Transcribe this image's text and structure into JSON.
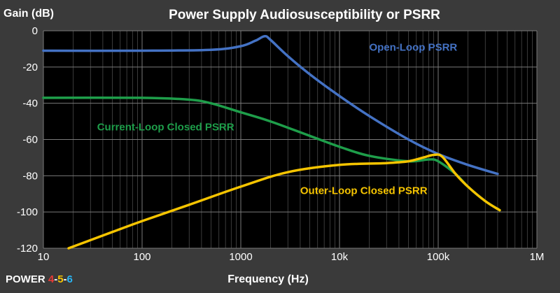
{
  "chart_data": {
    "type": "line",
    "title": "Power Supply Audiosusceptibility or PSRR",
    "ylabel": "Gain (dB)",
    "xlabel": "Frequency (Hz)",
    "x_scale": "log",
    "xlim": [
      10,
      1000000
    ],
    "ylim": [
      -120,
      0
    ],
    "x_ticks": [
      10,
      100,
      1000,
      10000,
      100000,
      1000000
    ],
    "x_tick_labels": [
      "10",
      "100",
      "1000",
      "10k",
      "100k",
      "1M"
    ],
    "y_ticks": [
      0,
      -20,
      -40,
      -60,
      -80,
      -100,
      -120
    ],
    "y_tick_labels": [
      "0",
      "-20",
      "-40",
      "-60",
      "-80",
      "-100",
      "-120"
    ],
    "grid": true,
    "series": [
      {
        "name": "Open-Loop PSRR",
        "color": "#4472c4",
        "points": [
          [
            10,
            -11
          ],
          [
            100,
            -11
          ],
          [
            500,
            -10.5
          ],
          [
            1000,
            -8.5
          ],
          [
            1400,
            -5.5
          ],
          [
            1750,
            -3
          ],
          [
            2000,
            -5
          ],
          [
            3000,
            -14
          ],
          [
            5000,
            -24
          ],
          [
            10000,
            -36
          ],
          [
            20000,
            -47
          ],
          [
            50000,
            -60
          ],
          [
            100000,
            -68
          ],
          [
            200000,
            -74
          ],
          [
            400000,
            -79
          ]
        ]
      },
      {
        "name": "Current-Loop Closed PSRR",
        "color": "#1e9e4a",
        "points": [
          [
            10,
            -37
          ],
          [
            100,
            -37
          ],
          [
            300,
            -38
          ],
          [
            500,
            -40
          ],
          [
            1000,
            -45
          ],
          [
            2000,
            -50
          ],
          [
            5000,
            -58
          ],
          [
            10000,
            -64
          ],
          [
            20000,
            -69
          ],
          [
            50000,
            -72
          ],
          [
            80000,
            -71
          ],
          [
            100000,
            -72
          ],
          [
            150000,
            -79
          ],
          [
            200000,
            -86
          ],
          [
            300000,
            -94
          ],
          [
            420000,
            -99
          ]
        ]
      },
      {
        "name": "Outer-Loop Closed PSRR",
        "color": "#f5c400",
        "points": [
          [
            18,
            -120
          ],
          [
            50,
            -111
          ],
          [
            100,
            -105
          ],
          [
            300,
            -96
          ],
          [
            1000,
            -86
          ],
          [
            3000,
            -78
          ],
          [
            10000,
            -74
          ],
          [
            30000,
            -73
          ],
          [
            50000,
            -72
          ],
          [
            70000,
            -70
          ],
          [
            90000,
            -68.5
          ],
          [
            110000,
            -69.5
          ],
          [
            150000,
            -79
          ],
          [
            200000,
            -86
          ],
          [
            300000,
            -94
          ],
          [
            420000,
            -99
          ]
        ]
      }
    ],
    "annotations": [
      {
        "text": "Open-Loop PSRR",
        "color": "#4472c4",
        "x": 20000,
        "y": -11
      },
      {
        "text": "Current-Loop Closed PSRR",
        "color": "#1e9e4a",
        "x": 35,
        "y": -55
      },
      {
        "text": "Outer-Loop Closed PSRR",
        "color": "#f5c400",
        "x": 4000,
        "y": -90
      }
    ]
  },
  "brand": {
    "prefix": "POWER ",
    "d1": "4",
    "sep1": "-",
    "d2": "5",
    "sep2": "-",
    "d3": "6",
    "c1": "#e53935",
    "c2": "#f5c400",
    "c3": "#29b6f6"
  }
}
